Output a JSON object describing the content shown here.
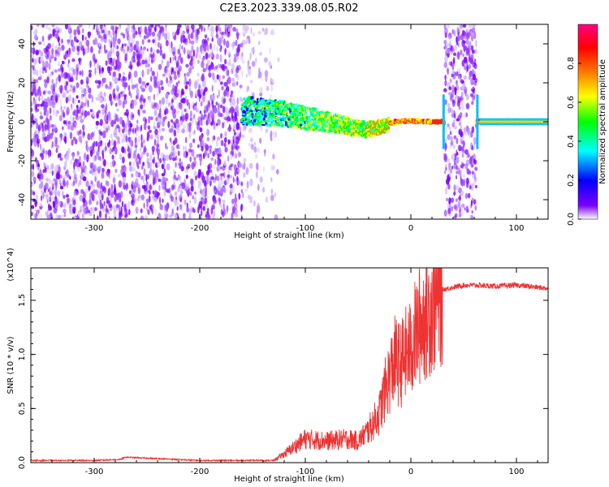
{
  "title": "C2E3.2023.339.08.05.R02",
  "chart_data": [
    {
      "type": "heatmap",
      "xlabel": "Height of straight line (km)",
      "ylabel": "Frequency (Hz)",
      "xlim": [
        -360,
        130
      ],
      "ylim": [
        -50,
        50
      ],
      "xticks": [
        -300,
        -200,
        -100,
        0,
        100
      ],
      "yticks": [
        -40,
        -20,
        0,
        20,
        40
      ],
      "colorbar": {
        "label": "Normalized spectral amplitude",
        "range": [
          0,
          1
        ],
        "ticks": [
          "0.0",
          "0.2",
          "0.4",
          "0.6",
          "0.8"
        ],
        "colors": [
          "#ffffff",
          "#7a00ff",
          "#0000ff",
          "#00ffff",
          "#00ff00",
          "#ffff00",
          "#ff7f00",
          "#ff0000",
          "#ff0080"
        ]
      },
      "ridge": {
        "x": [
          -160,
          -140,
          -120,
          -100,
          -80,
          -60,
          -45,
          -30,
          -15,
          0,
          20,
          30,
          65,
          130
        ],
        "y": [
          6,
          5,
          4,
          2,
          0,
          -2,
          -4,
          -3,
          0,
          0.5,
          0,
          0,
          0,
          0
        ]
      },
      "noise_blocks": [
        {
          "x_range": [
            -360,
            -160
          ],
          "density": "high"
        },
        {
          "x_range": [
            -160,
            -125
          ],
          "density": "low"
        },
        {
          "x_range": [
            32,
            62
          ],
          "density": "high"
        }
      ]
    },
    {
      "type": "line",
      "xlabel": "Height of straight line (km)",
      "ylabel": "SNR (10 * v/v)",
      "y_multiplier": "(x10^4)",
      "xlim": [
        -360,
        130
      ],
      "ylim": [
        0,
        1.8
      ],
      "xticks": [
        -300,
        -200,
        -100,
        0,
        100
      ],
      "yticks": [
        "0.0",
        "0.5",
        "1.0",
        "1.5"
      ],
      "series": [
        {
          "color": "#ee3333",
          "x": [
            -360,
            -300,
            -275,
            -270,
            -200,
            -130,
            -120,
            -110,
            -100,
            -80,
            -60,
            -50,
            -40,
            -30,
            -25,
            -20,
            -15,
            -10,
            -5,
            0,
            5,
            10,
            20,
            30,
            40,
            50,
            60,
            80,
            100,
            120,
            130
          ],
          "y": [
            0.02,
            0.02,
            0.03,
            0.05,
            0.02,
            0.02,
            0.08,
            0.15,
            0.22,
            0.2,
            0.22,
            0.2,
            0.3,
            0.45,
            0.65,
            0.8,
            0.95,
            0.9,
            1.0,
            1.05,
            1.2,
            1.3,
            1.45,
            1.6,
            1.62,
            1.64,
            1.64,
            1.63,
            1.64,
            1.62,
            1.61
          ]
        }
      ]
    }
  ]
}
